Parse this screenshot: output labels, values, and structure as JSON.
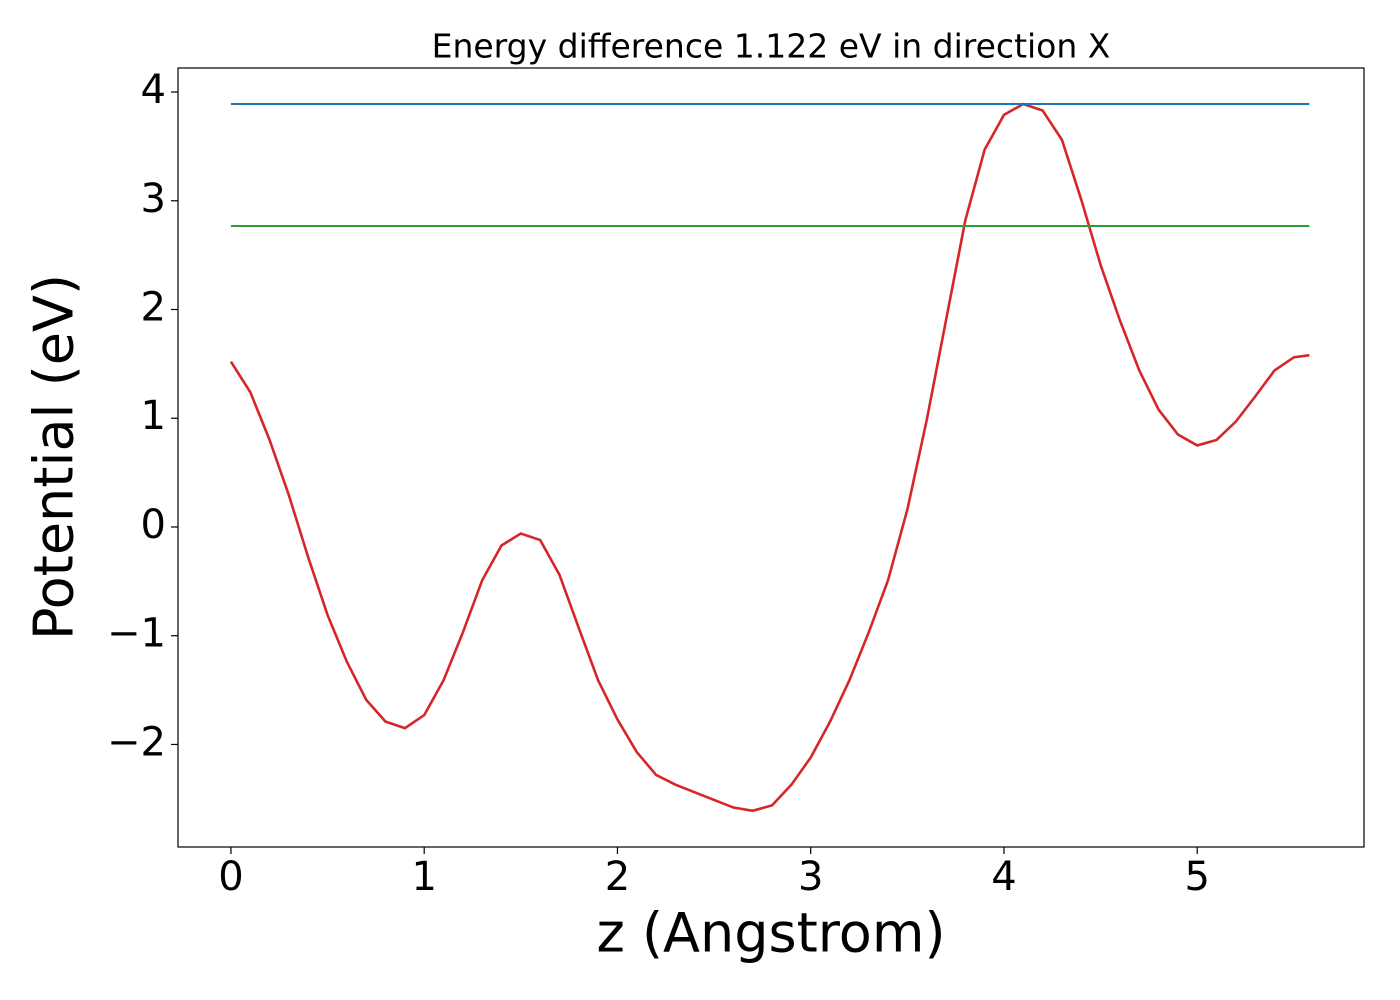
{
  "chart_data": {
    "type": "line",
    "title": "Energy difference 1.122 eV in direction X",
    "x_label": "z (Angstrom)",
    "y_label": "Potential (eV)",
    "xlim": [
      -0.274,
      5.863
    ],
    "ylim": [
      -2.943,
      4.221
    ],
    "xticks": [
      0,
      1,
      2,
      3,
      4,
      5
    ],
    "yticks": [
      {
        "value": -2,
        "label": "−2"
      },
      {
        "value": -1,
        "label": "−1"
      },
      0,
      1,
      2,
      3,
      4
    ],
    "grid": false,
    "series": [
      {
        "color": "#d62728",
        "x": [
          0,
          0.1,
          0.2,
          0.3,
          0.4,
          0.5,
          0.6,
          0.7,
          0.8,
          0.9,
          1.0,
          1.1,
          1.2,
          1.3,
          1.4,
          1.5,
          1.6,
          1.7,
          1.8,
          1.9,
          2.0,
          2.1,
          2.2,
          2.3,
          2.4,
          2.5,
          2.6,
          2.7,
          2.8,
          2.9,
          3.0,
          3.1,
          3.2,
          3.3,
          3.4,
          3.5,
          3.6,
          3.7,
          3.8,
          3.9,
          4.0,
          4.1,
          4.2,
          4.3,
          4.4,
          4.5,
          4.6,
          4.7,
          4.8,
          4.9,
          5.0,
          5.1,
          5.2,
          5.3,
          5.4,
          5.5,
          5.58
        ],
        "values": [
          1.52,
          1.24,
          0.8,
          0.29,
          -0.28,
          -0.81,
          -1.24,
          -1.59,
          -1.79,
          -1.85,
          -1.73,
          -1.41,
          -0.97,
          -0.49,
          -0.17,
          -0.06,
          -0.12,
          -0.44,
          -0.93,
          -1.41,
          -1.77,
          -2.07,
          -2.28,
          -2.37,
          -2.44,
          -2.51,
          -2.58,
          -2.61,
          -2.56,
          -2.37,
          -2.12,
          -1.79,
          -1.41,
          -0.97,
          -0.49,
          0.16,
          0.98,
          1.9,
          2.82,
          3.47,
          3.79,
          3.89,
          3.83,
          3.56,
          3.01,
          2.41,
          1.9,
          1.44,
          1.08,
          0.85,
          0.75,
          0.8,
          0.97,
          1.2,
          1.44,
          1.56,
          1.58
        ]
      },
      {
        "color": "#1f77b4",
        "x": [
          0,
          5.58
        ],
        "values": [
          3.89,
          3.89
        ]
      },
      {
        "color": "#2ca02c",
        "x": [
          0,
          5.58
        ],
        "values": [
          2.768,
          2.768
        ]
      }
    ]
  }
}
